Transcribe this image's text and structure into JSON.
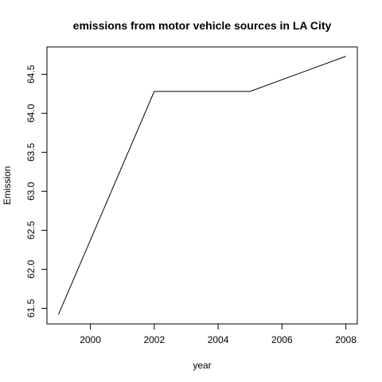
{
  "chart_data": {
    "type": "line",
    "title": "emissions from motor vehicle sources in LA City",
    "xlabel": "year",
    "ylabel": "Emission",
    "x": [
      1999,
      2002,
      2005,
      2008
    ],
    "series": [
      {
        "values": [
          61.42,
          64.28,
          64.28,
          64.73
        ]
      }
    ],
    "xlim": [
      1998.64,
      2008.36
    ],
    "ylim": [
      61.3,
      64.85
    ],
    "x_ticks": [
      2000,
      2002,
      2004,
      2006,
      2008
    ],
    "x_tick_labels": [
      "2000",
      "2002",
      "2004",
      "2006",
      "2008"
    ],
    "y_ticks": [
      61.5,
      62.0,
      62.5,
      63.0,
      63.5,
      64.0,
      64.5
    ],
    "y_tick_labels": [
      "61.5",
      "62.0",
      "62.5",
      "63.0",
      "63.5",
      "64.0",
      "64.5"
    ],
    "grid": false,
    "line_color": "#000000"
  }
}
